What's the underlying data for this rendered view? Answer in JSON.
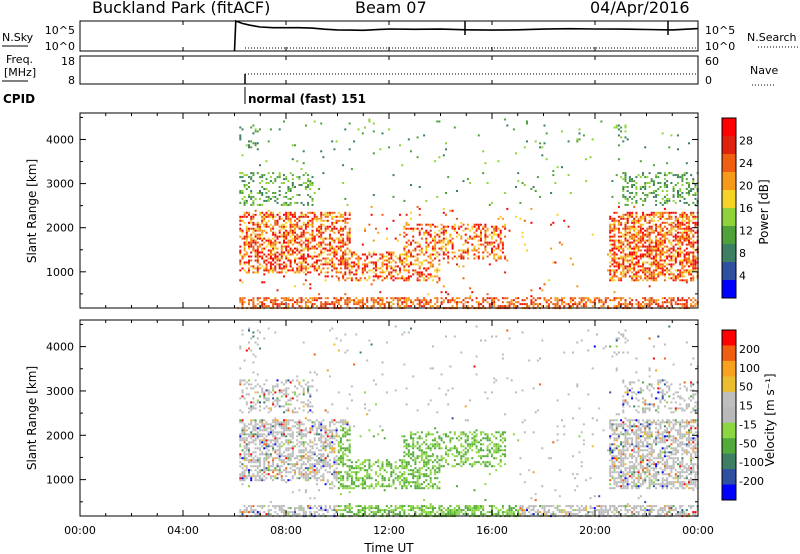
{
  "header": {
    "station": "Buckland Park (fitACF)",
    "beam": "Beam 07",
    "date": "04/Apr/2016"
  },
  "colors": {
    "noise": "#000000",
    "power": [
      "#0000ff",
      "#2f50a0",
      "#3c7f63",
      "#4fa13a",
      "#8fd33a",
      "#f6d327",
      "#f79a1a",
      "#f05e12",
      "#e0210e",
      "#ff0000"
    ],
    "velocity": [
      "#ff0000",
      "#f05e12",
      "#f7a11f",
      "#ecbe2f",
      "#bebebe",
      "#b9b9b9",
      "#8cd642",
      "#52aa3a",
      "#3c7f63",
      "#2f50a0",
      "#0000ff"
    ]
  },
  "chart_data": [
    {
      "type": "line",
      "panel": "noise-sky-search",
      "left_label": "N.Sky",
      "right_label": "N.Search",
      "left_ticks": [
        "10^5",
        "10^0"
      ],
      "right_ticks": [
        "10^5",
        "10^0"
      ],
      "x": [
        6.0,
        6.05,
        6.3,
        6.6,
        7.0,
        7.5,
        8.0,
        8.5,
        9.0,
        9.5,
        10.0,
        10.5,
        11.0,
        12.0,
        13.0,
        14.0,
        15.0,
        16.0,
        17.0,
        18.0,
        19.0,
        20.0,
        21.0,
        22.0,
        23.0,
        24.0
      ],
      "series": [
        {
          "values": [
            0,
            5.0,
            4.6,
            4.3,
            4.1,
            4.0,
            3.9,
            3.8,
            3.7,
            3.6,
            3.6,
            3.6,
            3.5,
            3.6,
            3.5,
            3.6,
            3.6,
            3.6,
            3.6,
            3.6,
            3.6,
            3.6,
            3.7,
            3.7,
            3.6,
            3.7
          ]
        }
      ],
      "ylim": [
        0,
        5
      ]
    },
    {
      "type": "line",
      "panel": "frequency-nave",
      "left_label": "Freq.",
      "left_unit": "[MHz]",
      "right_label": "Nave",
      "left_ticks": [
        "18",
        "8"
      ],
      "right_ticks": [
        "60",
        "0"
      ],
      "ylim": [
        0,
        60
      ]
    },
    {
      "type": "table",
      "panel": "cpid",
      "label": "CPID",
      "entries": [
        {
          "start": 6.0,
          "text": "normal (fast) 151"
        }
      ]
    },
    {
      "type": "heatmap",
      "panel": "power",
      "ylabel": "Slant Range [km]",
      "yticks": [
        1000,
        2000,
        3000,
        4000
      ],
      "ylim": [
        180,
        4600
      ],
      "xlim": [
        0,
        24
      ],
      "colorbar": {
        "label": "Power [dB]",
        "ticks": [
          4,
          8,
          12,
          16,
          20,
          24,
          28
        ]
      }
    },
    {
      "type": "heatmap",
      "panel": "velocity",
      "ylabel": "Slant Range [km]",
      "yticks": [
        1000,
        2000,
        3000,
        4000
      ],
      "ylim": [
        180,
        4600
      ],
      "xlim": [
        0,
        24
      ],
      "xlabel": "Time UT",
      "xticks": [
        "00:00",
        "04:00",
        "08:00",
        "12:00",
        "16:00",
        "20:00",
        "00:00"
      ],
      "colorbar": {
        "label": "Velocity [m s⁻¹]",
        "ticks": [
          200,
          100,
          50,
          15,
          -15,
          -50,
          -100,
          -200
        ]
      }
    }
  ]
}
